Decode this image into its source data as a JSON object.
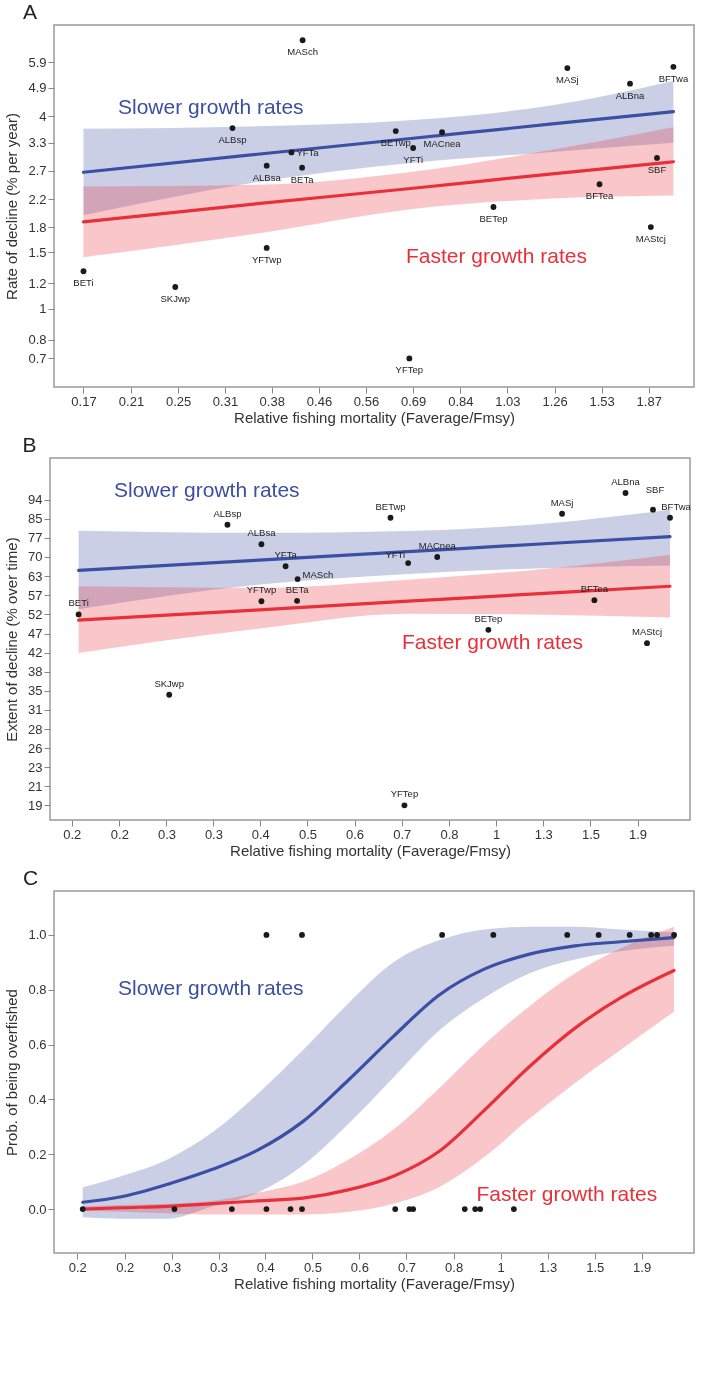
{
  "chart_data": [
    {
      "type": "scatter",
      "title": "A",
      "xlabel": "Relative fishing mortality (Faverage/Fmsy)",
      "ylabel": "Rate of decline (% per year)",
      "log": "xy",
      "xlim": [
        0.15,
        2.27
      ],
      "ylim": [
        0.57,
        7.7
      ],
      "xticks": [
        0.17,
        {
          "value": 0.208,
          "label": "0.21"
        },
        {
          "value": 0.254,
          "label": "0.25"
        },
        0.31,
        {
          "value": 0.378,
          "label": "0.38"
        },
        {
          "value": 0.462,
          "label": "0.46"
        },
        {
          "value": 0.564,
          "label": "0.56"
        },
        {
          "value": 0.689,
          "label": "0.69"
        },
        {
          "value": 0.842,
          "label": "0.84"
        },
        {
          "value": 1.028,
          "label": "1.03"
        },
        {
          "value": 1.256,
          "label": "1.26"
        },
        {
          "value": 1.534,
          "label": "1.53"
        },
        {
          "value": 1.873,
          "label": "1.87"
        }
      ],
      "yticks": [
        0.7,
        0.8,
        1,
        1.2,
        1.5,
        1.8,
        2.2,
        2.7,
        3.3,
        4,
        4.9,
        5.9
      ],
      "series": [
        {
          "name": "Slower growth rates",
          "type": "line",
          "color": "#3b4fa3",
          "x": [
            0.17,
            0.356,
            0.689,
            1.244,
            2.08
          ],
          "values": [
            2.67,
            3.04,
            3.41,
            3.78,
            4.13
          ],
          "lower": [
            1.96,
            2.49,
            2.86,
            3.09,
            3.3
          ],
          "upper": [
            3.65,
            3.72,
            3.89,
            4.32,
            5.15
          ]
        },
        {
          "name": "Faster growth rates",
          "type": "line",
          "color": "#e8303a",
          "x": [
            0.17,
            0.356,
            0.689,
            1.244,
            2.08
          ],
          "values": [
            1.87,
            2.13,
            2.38,
            2.64,
            2.88
          ],
          "lower": [
            1.45,
            1.72,
            2.05,
            2.21,
            2.26
          ],
          "upper": [
            2.41,
            2.44,
            2.68,
            3.14,
            3.69
          ]
        },
        {
          "marker": "circle",
          "color": "#1a1a1a",
          "x": [
            0.431,
            1.326,
            2.08,
            1.73,
            0.32,
            0.64,
            0.779,
            0.689,
            0.411,
            0.37,
            0.43,
            1.94,
            1.52,
            0.969,
            1.89,
            0.37,
            0.17,
            0.251,
            0.678
          ],
          "values": [
            6.9,
            5.65,
            5.7,
            5.05,
            3.67,
            3.59,
            3.56,
            3.18,
            3.08,
            2.8,
            2.76,
            2.96,
            2.45,
            2.08,
            1.8,
            1.55,
            1.31,
            1.17,
            0.7
          ]
        }
      ],
      "annotations": [
        {
          "text": "MASch",
          "x": 0.431,
          "y": 6.9
        },
        {
          "text": "MASj",
          "x": 1.326,
          "y": 5.65
        },
        {
          "text": "BFTwa",
          "x": 2.08,
          "y": 5.7
        },
        {
          "text": "ALBna",
          "x": 1.73,
          "y": 5.05
        },
        {
          "text": "ALBsp",
          "x": 0.32,
          "y": 3.67
        },
        {
          "text": "BETwp",
          "x": 0.64,
          "y": 3.59
        },
        {
          "text": "MACnea",
          "x": 0.779,
          "y": 3.56
        },
        {
          "text": "YFTi",
          "x": 0.689,
          "y": 3.18
        },
        {
          "text": "YFTa",
          "x": 0.411,
          "y": 3.08
        },
        {
          "text": "ALBsa",
          "x": 0.37,
          "y": 2.8
        },
        {
          "text": "BETa",
          "x": 0.43,
          "y": 2.76
        },
        {
          "text": "SBF",
          "x": 1.94,
          "y": 2.96
        },
        {
          "text": "BFTea",
          "x": 1.52,
          "y": 2.45
        },
        {
          "text": "BETep",
          "x": 0.969,
          "y": 2.08
        },
        {
          "text": "MAStcj",
          "x": 1.89,
          "y": 1.8
        },
        {
          "text": "YFTwp",
          "x": 0.37,
          "y": 1.55
        },
        {
          "text": "BETi",
          "x": 0.17,
          "y": 1.31
        },
        {
          "text": "SKJwp",
          "x": 0.251,
          "y": 1.17
        },
        {
          "text": "YFTep",
          "x": 0.678,
          "y": 0.7
        }
      ]
    },
    {
      "type": "scatter",
      "title": "B",
      "xlabel": "Relative fishing mortality (Faverage/Fmsy)",
      "ylabel": "Extent of decline (% over time)",
      "log": "xy",
      "xlim": [
        0.155,
        2.34
      ],
      "ylim": [
        17.6,
        117
      ],
      "xticks": [
        {
          "value": 0.17,
          "label": "0.2"
        },
        {
          "value": 0.208,
          "label": "0.2"
        },
        {
          "value": 0.254,
          "label": "0.3"
        },
        {
          "value": 0.31,
          "label": "0.3"
        },
        {
          "value": 0.378,
          "label": "0.4"
        },
        {
          "value": 0.462,
          "label": "0.5"
        },
        {
          "value": 0.564,
          "label": "0.6"
        },
        {
          "value": 0.689,
          "label": "0.7"
        },
        {
          "value": 0.842,
          "label": "0.8"
        },
        {
          "value": 1.028,
          "label": "1"
        },
        {
          "value": 1.256,
          "label": "1.3"
        },
        {
          "value": 1.534,
          "label": "1.5"
        },
        {
          "value": 1.873,
          "label": "1.9"
        }
      ],
      "yticks": [
        19,
        21,
        {
          "value": 23.2,
          "label": "23"
        },
        {
          "value": 25.6,
          "label": "26"
        },
        {
          "value": 28.3,
          "label": "28"
        },
        {
          "value": 31.3,
          "label": "31"
        },
        {
          "value": 34.6,
          "label": "35"
        },
        {
          "value": 38.2,
          "label": "38"
        },
        {
          "value": 42.2,
          "label": "42"
        },
        {
          "value": 46.7,
          "label": "47"
        },
        {
          "value": 51.6,
          "label": "52"
        },
        57,
        63,
        {
          "value": 69.7,
          "label": "70"
        },
        77,
        {
          "value": 85.1,
          "label": "85"
        },
        94
      ],
      "series": [
        {
          "name": "Slower growth rates",
          "type": "line",
          "color": "#3b4fa3",
          "x": [
            0.175,
            0.37,
            0.708,
            1.285,
            2.15
          ],
          "values": [
            65.0,
            68.5,
            71.7,
            74.8,
            77.5
          ],
          "lower": [
            53.0,
            60.2,
            63.8,
            65.8,
            66.7
          ],
          "upper": [
            80.0,
            79.1,
            79.9,
            83.2,
            89.3
          ]
        },
        {
          "name": "Faster growth rates",
          "type": "line",
          "color": "#e8303a",
          "x": [
            0.175,
            0.37,
            0.708,
            1.285,
            2.15
          ],
          "values": [
            50.1,
            52.8,
            55.3,
            57.7,
            59.8
          ],
          "lower": [
            42.2,
            47.8,
            51.8,
            51.5,
            50.8
          ],
          "upper": [
            59.8,
            59.3,
            61.9,
            65.6,
            70.5
          ]
        },
        {
          "marker": "circle",
          "color": "#1a1a1a",
          "x": [
            1.78,
            2.0,
            2.15,
            1.36,
            0.657,
            0.329,
            0.38,
            0.801,
            0.708,
            0.421,
            0.443,
            0.38,
            0.442,
            1.56,
            0.175,
            0.995,
            1.95,
            0.257,
            0.697
          ],
          "values": [
            97.4,
            89.3,
            85.6,
            87.4,
            85.6,
            82.5,
            74.5,
            69.7,
            67.5,
            66.4,
            62.1,
            55.3,
            55.4,
            55.6,
            51.6,
            47.6,
            44.4,
            33.9,
            19
          ]
        }
      ],
      "annotations": [
        {
          "text": "ALBna",
          "x": 1.78,
          "y": 97.4
        },
        {
          "text": "SBF",
          "x": 2.0,
          "y": 89.3
        },
        {
          "text": "BFTwa",
          "x": 2.15,
          "y": 85.6
        },
        {
          "text": "MASj",
          "x": 1.36,
          "y": 87.4
        },
        {
          "text": "BETwp",
          "x": 0.657,
          "y": 85.6
        },
        {
          "text": "ALBsp",
          "x": 0.329,
          "y": 82.5
        },
        {
          "text": "ALBsa",
          "x": 0.38,
          "y": 74.5
        },
        {
          "text": "MACnea",
          "x": 0.801,
          "y": 69.7
        },
        {
          "text": "YFTi",
          "x": 0.708,
          "y": 67.5
        },
        {
          "text": "YFTa",
          "x": 0.421,
          "y": 66.4
        },
        {
          "text": "MASch",
          "x": 0.443,
          "y": 62.1
        },
        {
          "text": "YFTwp",
          "x": 0.38,
          "y": 55.3
        },
        {
          "text": "BETa",
          "x": 0.442,
          "y": 55.4
        },
        {
          "text": "BFTea",
          "x": 1.56,
          "y": 55.6
        },
        {
          "text": "BETi",
          "x": 0.175,
          "y": 51.6
        },
        {
          "text": "BETep",
          "x": 0.995,
          "y": 47.6
        },
        {
          "text": "MAStcj",
          "x": 1.95,
          "y": 44.4
        },
        {
          "text": "SKJwp",
          "x": 0.257,
          "y": 33.9
        },
        {
          "text": "YFTep",
          "x": 0.697,
          "y": 19
        }
      ]
    },
    {
      "type": "scatter",
      "title": "C",
      "xlabel": "Relative fishing mortality (Faverage/Fmsy)",
      "ylabel": "Prob. of being overfished",
      "log": "x",
      "xlim": [
        0.154,
        2.34
      ],
      "ylim": [
        -0.16,
        1.16
      ],
      "xticks": [
        {
          "value": 0.17,
          "label": "0.2"
        },
        {
          "value": 0.208,
          "label": "0.2"
        },
        {
          "value": 0.254,
          "label": "0.3"
        },
        {
          "value": 0.31,
          "label": "0.3"
        },
        {
          "value": 0.378,
          "label": "0.4"
        },
        {
          "value": 0.462,
          "label": "0.5"
        },
        {
          "value": 0.564,
          "label": "0.6"
        },
        {
          "value": 0.689,
          "label": "0.7"
        },
        {
          "value": 0.842,
          "label": "0.8"
        },
        {
          "value": 1.028,
          "label": "1"
        },
        {
          "value": 1.256,
          "label": "1.3"
        },
        {
          "value": 1.534,
          "label": "1.5"
        },
        {
          "value": 1.873,
          "label": "1.9"
        }
      ],
      "yticks": [
        {
          "value": 0,
          "label": "0.0"
        },
        0.2,
        0.4,
        0.6,
        0.8,
        {
          "value": 1,
          "label": "1.0"
        }
      ],
      "series": [
        {
          "name": "Slower growth rates",
          "type": "line",
          "color": "#3b4fa3",
          "x": [
            0.174,
            0.205,
            0.249,
            0.302,
            0.366,
            0.444,
            0.538,
            0.652,
            0.791,
            0.959,
            1.163,
            1.411,
            1.711,
            2.149
          ],
          "values": [
            0.025,
            0.045,
            0.09,
            0.145,
            0.215,
            0.32,
            0.47,
            0.63,
            0.78,
            0.875,
            0.93,
            0.96,
            0.975,
            0.99
          ],
          "lower": [
            -0.03,
            -0.035,
            -0.035,
            0.01,
            0.06,
            0.16,
            0.31,
            0.48,
            0.65,
            0.77,
            0.86,
            0.91,
            0.94,
            0.96
          ],
          "upper": [
            0.08,
            0.12,
            0.18,
            0.28,
            0.42,
            0.58,
            0.75,
            0.9,
            0.98,
            1.02,
            1.03,
            1.03,
            1.02,
            1.01
          ]
        },
        {
          "name": "Faster growth rates",
          "type": "line",
          "color": "#e8303a",
          "x": [
            0.174,
            0.205,
            0.249,
            0.302,
            0.366,
            0.444,
            0.538,
            0.652,
            0.791,
            0.959,
            1.163,
            1.411,
            1.711,
            2.149
          ],
          "values": [
            0.0,
            0.005,
            0.01,
            0.02,
            0.03,
            0.04,
            0.07,
            0.12,
            0.21,
            0.36,
            0.52,
            0.66,
            0.77,
            0.87
          ],
          "lower": [
            -0.005,
            -0.01,
            -0.015,
            -0.02,
            -0.02,
            -0.02,
            -0.01,
            0.02,
            0.08,
            0.19,
            0.33,
            0.46,
            0.58,
            0.72
          ],
          "upper": [
            0.01,
            0.015,
            0.02,
            0.03,
            0.06,
            0.1,
            0.18,
            0.29,
            0.44,
            0.6,
            0.74,
            0.86,
            0.95,
            1.03
          ]
        },
        {
          "marker": "circle",
          "color": "#1a1a1a",
          "x": [
            0.38,
            0.442,
            0.802,
            0.997,
            1.365,
            1.56,
            1.78,
            1.95,
            2.0,
            2.15,
            0.174,
            0.257,
            0.328,
            0.38,
            0.421,
            0.442,
            0.657,
            0.698,
            0.709,
            0.883,
            0.923,
            0.943,
            1.088
          ],
          "values": [
            1,
            1,
            1,
            1,
            1,
            1,
            1,
            1,
            1,
            1,
            0,
            0,
            0,
            0,
            0,
            0,
            0,
            0,
            0,
            0,
            0,
            0,
            0
          ]
        }
      ]
    }
  ]
}
